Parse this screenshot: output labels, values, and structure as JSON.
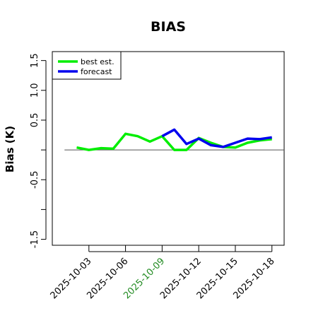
{
  "chart_data": {
    "type": "line",
    "title": "BIAS",
    "ylabel": "Bias (K)",
    "xlabel": "",
    "ylim": [
      -1.6,
      1.65
    ],
    "xlim": [
      "2025-09-30",
      "2025-10-19"
    ],
    "yticks": [
      {
        "value": 1.5,
        "label": "1.5"
      },
      {
        "value": 1.0,
        "label": "1.0"
      },
      {
        "value": 0.5,
        "label": "0.5"
      },
      {
        "value": 0.0,
        "label": ""
      },
      {
        "value": -0.5,
        "label": "-0.5"
      },
      {
        "value": -1.0,
        "label": ""
      },
      {
        "value": -1.5,
        "label": "-1.5"
      }
    ],
    "xticks": [
      {
        "date": "2025-10-03",
        "label": "2025-10-03",
        "color": "#000000"
      },
      {
        "date": "2025-10-06",
        "label": "2025-10-06",
        "color": "#000000"
      },
      {
        "date": "2025-10-09",
        "label": "2025-10-09",
        "color": "#228B22"
      },
      {
        "date": "2025-10-12",
        "label": "2025-10-12",
        "color": "#000000"
      },
      {
        "date": "2025-10-15",
        "label": "2025-10-15",
        "color": "#000000"
      },
      {
        "date": "2025-10-18",
        "label": "2025-10-18",
        "color": "#000000"
      }
    ],
    "reference_line": {
      "y": 0.0,
      "x_start": "2025-10-01",
      "x_end": "2025-10-19",
      "color": "#555555"
    },
    "legend": {
      "placement": "top-left",
      "entries": [
        {
          "name": "best est.",
          "color": "#00ee00"
        },
        {
          "name": "forecast",
          "color": "#0000ee"
        }
      ]
    },
    "series": [
      {
        "name": "best est.",
        "color": "#00ee00",
        "x": [
          "2025-10-02",
          "2025-10-03",
          "2025-10-04",
          "2025-10-05",
          "2025-10-06",
          "2025-10-07",
          "2025-10-08",
          "2025-10-09",
          "2025-10-10",
          "2025-10-11",
          "2025-10-12",
          "2025-10-13",
          "2025-10-14",
          "2025-10-15",
          "2025-10-16",
          "2025-10-17",
          "2025-10-18"
        ],
        "values": [
          0.04,
          0.0,
          0.03,
          0.02,
          0.27,
          0.23,
          0.14,
          0.23,
          0.0,
          0.0,
          0.2,
          0.12,
          0.05,
          0.04,
          0.12,
          0.16,
          0.18
        ]
      },
      {
        "name": "forecast",
        "color": "#0000ee",
        "x": [
          "2025-10-09",
          "2025-10-10",
          "2025-10-11",
          "2025-10-12",
          "2025-10-13",
          "2025-10-14",
          "2025-10-15",
          "2025-10-16",
          "2025-10-17",
          "2025-10-18"
        ],
        "values": [
          0.23,
          0.34,
          0.1,
          0.19,
          0.08,
          0.05,
          0.12,
          0.19,
          0.18,
          0.21
        ]
      }
    ]
  }
}
